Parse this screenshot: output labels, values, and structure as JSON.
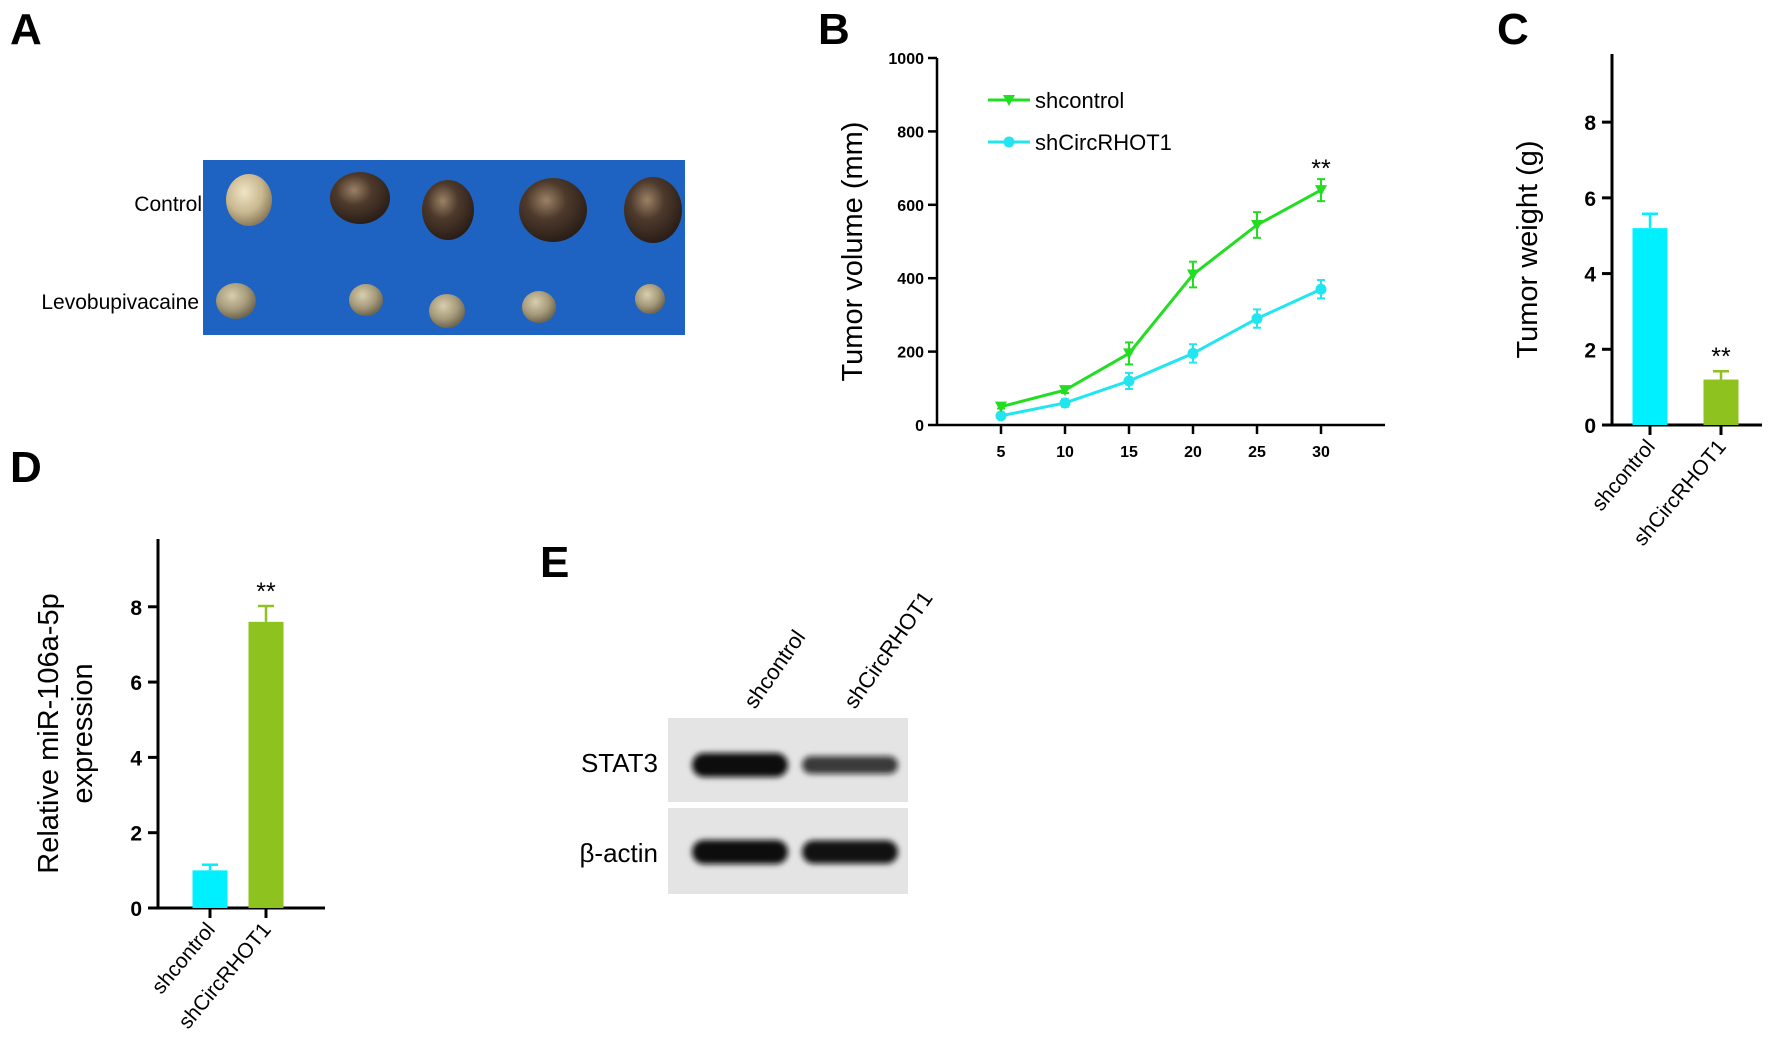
{
  "panels": {
    "A": {
      "letter": "A",
      "row_labels": [
        "Control",
        "Levobupivacaine"
      ],
      "photo_bg": "#1f63c2"
    },
    "B": {
      "letter": "B"
    },
    "C": {
      "letter": "C"
    },
    "D": {
      "letter": "D"
    },
    "E": {
      "letter": "E",
      "columns": [
        "shcontrol",
        "shCircRHOT1"
      ],
      "rows": [
        "STAT3",
        "β-actin"
      ],
      "band_intensity": {
        "STAT3": [
          1.0,
          0.55
        ],
        "β-actin": [
          1.0,
          0.95
        ]
      }
    }
  },
  "chart_data": [
    {
      "id": "B",
      "type": "line",
      "title": "",
      "xlabel": "",
      "ylabel": "Tumor volume (mm)",
      "x": [
        5,
        10,
        15,
        20,
        25,
        30
      ],
      "xlim": [
        0,
        35
      ],
      "ylim": [
        0,
        1000
      ],
      "yticks": [
        0,
        200,
        400,
        600,
        800,
        1000
      ],
      "grid": false,
      "legend_position": "top-left",
      "series": [
        {
          "name": "shcontrol",
          "values": [
            50,
            95,
            195,
            410,
            545,
            640
          ],
          "errors": [
            5,
            8,
            30,
            35,
            35,
            30
          ],
          "color": "#22dd22",
          "marker": "triangle-down"
        },
        {
          "name": "shCircRHOT1",
          "values": [
            25,
            60,
            120,
            195,
            290,
            370
          ],
          "errors": [
            5,
            10,
            22,
            25,
            25,
            25
          ],
          "color": "#22e5f0",
          "marker": "circle"
        }
      ],
      "annotations": [
        {
          "text": "**",
          "x": 30
        }
      ]
    },
    {
      "id": "C",
      "type": "bar",
      "title": "",
      "ylabel": "Tumor weight (g)",
      "categories": [
        "shcontrol",
        "shCircRHOT1"
      ],
      "values": [
        5.2,
        1.2
      ],
      "errors": [
        0.38,
        0.22
      ],
      "colors": [
        "#00f0ff",
        "#8dc21f"
      ],
      "ylim": [
        0,
        9.8
      ],
      "yticks": [
        0,
        2,
        4,
        6,
        8
      ],
      "annotations": [
        {
          "text": "**",
          "category": "shCircRHOT1"
        }
      ]
    },
    {
      "id": "D",
      "type": "bar",
      "title": "",
      "ylabel": "Relative miR-106a-5p expression",
      "ylabel_lines": [
        "Relative miR-106a-5p",
        "expression"
      ],
      "categories": [
        "shcontrol",
        "shCircRHOT1"
      ],
      "values": [
        1.0,
        7.6
      ],
      "errors": [
        0.15,
        0.42
      ],
      "colors": [
        "#00f0ff",
        "#8dc21f"
      ],
      "ylim": [
        0,
        9.8
      ],
      "yticks": [
        0,
        2,
        4,
        6,
        8
      ],
      "annotations": [
        {
          "text": "**",
          "category": "shCircRHOT1"
        }
      ]
    }
  ]
}
